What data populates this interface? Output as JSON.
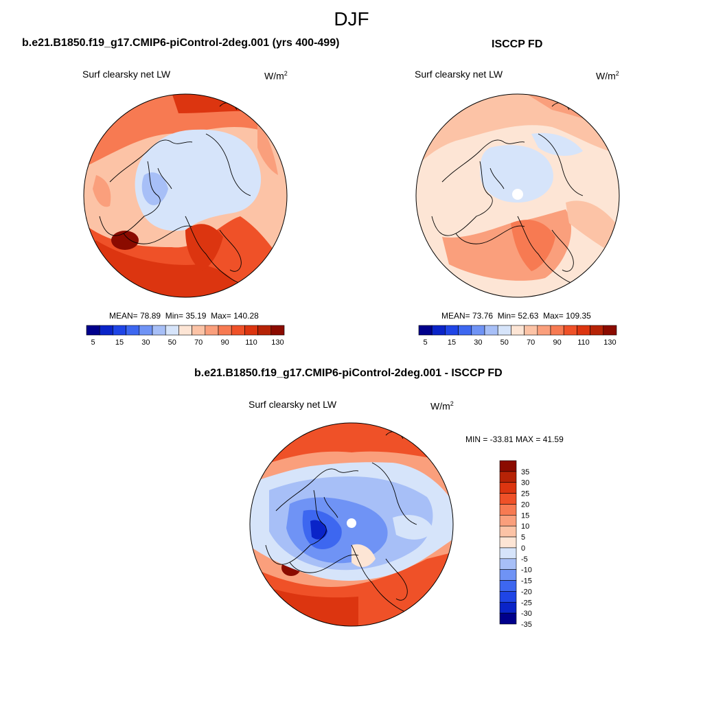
{
  "figure": {
    "season": "DJF",
    "model": {
      "title": "b.e21.B1850.f19_g17.CMIP6-piControl-2deg.001 (yrs 400-499)",
      "variable": "Surf clearsky net LW",
      "unit": "W/m",
      "unit_exp": "2",
      "mean": "MEAN=  78.89",
      "min": "Min=  35.19",
      "max": "Max= 140.28"
    },
    "obs": {
      "title": "ISCCP FD",
      "variable": "Surf clearsky net LW",
      "unit": "W/m",
      "unit_exp": "2",
      "mean": "MEAN=  73.76",
      "min": "Min=  52.63",
      "max": "Max= 109.35"
    },
    "diff": {
      "title": "b.e21.B1850.f19_g17.CMIP6-piControl-2deg.001 - ISCCP FD",
      "variable": "Surf clearsky net LW",
      "unit": "W/m",
      "unit_exp": "2",
      "minmax": "MIN = -33.81 MAX =  41.59"
    }
  },
  "colorbars": {
    "abs": {
      "colors": [
        "#00008b",
        "#0a24c8",
        "#1f45e6",
        "#3d67f0",
        "#6f93f5",
        "#a7bff7",
        "#d6e4fa",
        "#fde5d5",
        "#fcc3a6",
        "#fa9f7c",
        "#f77a52",
        "#ef5128",
        "#dc3510",
        "#b62306",
        "#8b0b00"
      ],
      "tick_labels": [
        "5",
        "15",
        "30",
        "50",
        "70",
        "90",
        "110",
        "130"
      ]
    },
    "diff": {
      "colors": [
        "#00008b",
        "#0a24c8",
        "#1f45e6",
        "#3d67f0",
        "#6f93f5",
        "#a7bff7",
        "#d6e4fa",
        "#fde5d5",
        "#fcc3a6",
        "#fa9f7c",
        "#f77a52",
        "#ef5128",
        "#dc3510",
        "#b62306",
        "#8b0b00"
      ],
      "tick_labels": [
        "-35",
        "-30",
        "-25",
        "-20",
        "-15",
        "-10",
        "-5",
        "0",
        "5",
        "10",
        "15",
        "20",
        "25",
        "30",
        "35"
      ]
    }
  }
}
